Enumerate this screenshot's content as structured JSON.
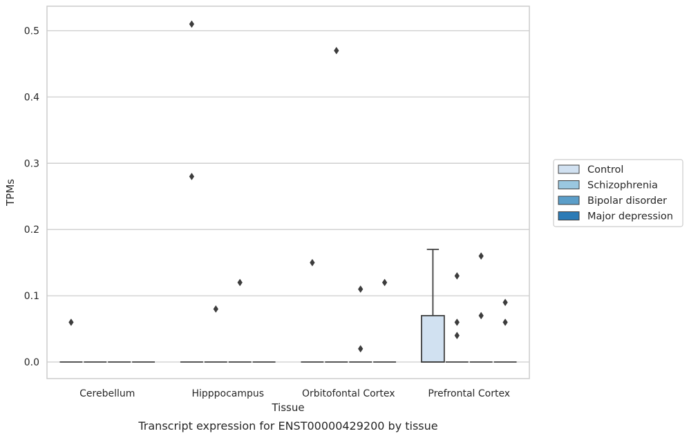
{
  "chart_data": {
    "type": "box",
    "title": "",
    "caption": "Transcript expression for ENST00000429200 by tissue",
    "xlabel": "Tissue",
    "ylabel": "TPMs",
    "ylim": [
      -0.025,
      0.537
    ],
    "yticks": [
      0.0,
      0.1,
      0.2,
      0.3,
      0.4,
      0.5
    ],
    "ytick_labels": [
      "0.0",
      "0.1",
      "0.2",
      "0.3",
      "0.4",
      "0.5"
    ],
    "grid": "horizontal",
    "legend_position": "right",
    "categories": [
      "Cerebellum",
      "Hipppocampus",
      "Orbitofontal Cortex",
      "Prefrontal Cortex"
    ],
    "series": [
      {
        "name": "Control",
        "color": "#d1e1f1",
        "boxes": [
          {
            "category": "Cerebellum",
            "q1": 0,
            "median": 0,
            "q3": 0,
            "whisker_low": 0,
            "whisker_high": 0,
            "outliers": [
              0.06
            ]
          },
          {
            "category": "Hipppocampus",
            "q1": 0,
            "median": 0,
            "q3": 0,
            "whisker_low": 0,
            "whisker_high": 0,
            "outliers": [
              0.51,
              0.28
            ]
          },
          {
            "category": "Orbitofontal Cortex",
            "q1": 0,
            "median": 0,
            "q3": 0,
            "whisker_low": 0,
            "whisker_high": 0,
            "outliers": [
              0.15
            ]
          },
          {
            "category": "Prefrontal Cortex",
            "q1": 0,
            "median": 0,
            "q3": 0.07,
            "whisker_low": 0,
            "whisker_high": 0.17,
            "outliers": []
          }
        ]
      },
      {
        "name": "Schizophrenia",
        "color": "#9ac7e0",
        "boxes": [
          {
            "category": "Cerebellum",
            "q1": 0,
            "median": 0,
            "q3": 0,
            "whisker_low": 0,
            "whisker_high": 0,
            "outliers": []
          },
          {
            "category": "Hipppocampus",
            "q1": 0,
            "median": 0,
            "q3": 0,
            "whisker_low": 0,
            "whisker_high": 0,
            "outliers": [
              0.08
            ]
          },
          {
            "category": "Orbitofontal Cortex",
            "q1": 0,
            "median": 0,
            "q3": 0,
            "whisker_low": 0,
            "whisker_high": 0,
            "outliers": [
              0.47
            ]
          },
          {
            "category": "Prefrontal Cortex",
            "q1": 0,
            "median": 0,
            "q3": 0,
            "whisker_low": 0,
            "whisker_high": 0,
            "outliers": [
              0.13,
              0.06,
              0.04
            ]
          }
        ]
      },
      {
        "name": "Bipolar disorder",
        "color": "#5b9ec9",
        "boxes": [
          {
            "category": "Cerebellum",
            "q1": 0,
            "median": 0,
            "q3": 0,
            "whisker_low": 0,
            "whisker_high": 0,
            "outliers": []
          },
          {
            "category": "Hipppocampus",
            "q1": 0,
            "median": 0,
            "q3": 0,
            "whisker_low": 0,
            "whisker_high": 0,
            "outliers": [
              0.12
            ]
          },
          {
            "category": "Orbitofontal Cortex",
            "q1": 0,
            "median": 0,
            "q3": 0,
            "whisker_low": 0,
            "whisker_high": 0,
            "outliers": [
              0.11,
              0.02
            ]
          },
          {
            "category": "Prefrontal Cortex",
            "q1": 0,
            "median": 0,
            "q3": 0,
            "whisker_low": 0,
            "whisker_high": 0,
            "outliers": [
              0.16,
              0.07
            ]
          }
        ]
      },
      {
        "name": "Major depression",
        "color": "#2c7bb6",
        "boxes": [
          {
            "category": "Cerebellum",
            "q1": 0,
            "median": 0,
            "q3": 0,
            "whisker_low": 0,
            "whisker_high": 0,
            "outliers": []
          },
          {
            "category": "Hipppocampus",
            "q1": 0,
            "median": 0,
            "q3": 0,
            "whisker_low": 0,
            "whisker_high": 0,
            "outliers": []
          },
          {
            "category": "Orbitofontal Cortex",
            "q1": 0,
            "median": 0,
            "q3": 0,
            "whisker_low": 0,
            "whisker_high": 0,
            "outliers": [
              0.12
            ]
          },
          {
            "category": "Prefrontal Cortex",
            "q1": 0,
            "median": 0,
            "q3": 0,
            "whisker_low": 0,
            "whisker_high": 0,
            "outliers": [
              0.09,
              0.06
            ]
          }
        ]
      }
    ]
  }
}
